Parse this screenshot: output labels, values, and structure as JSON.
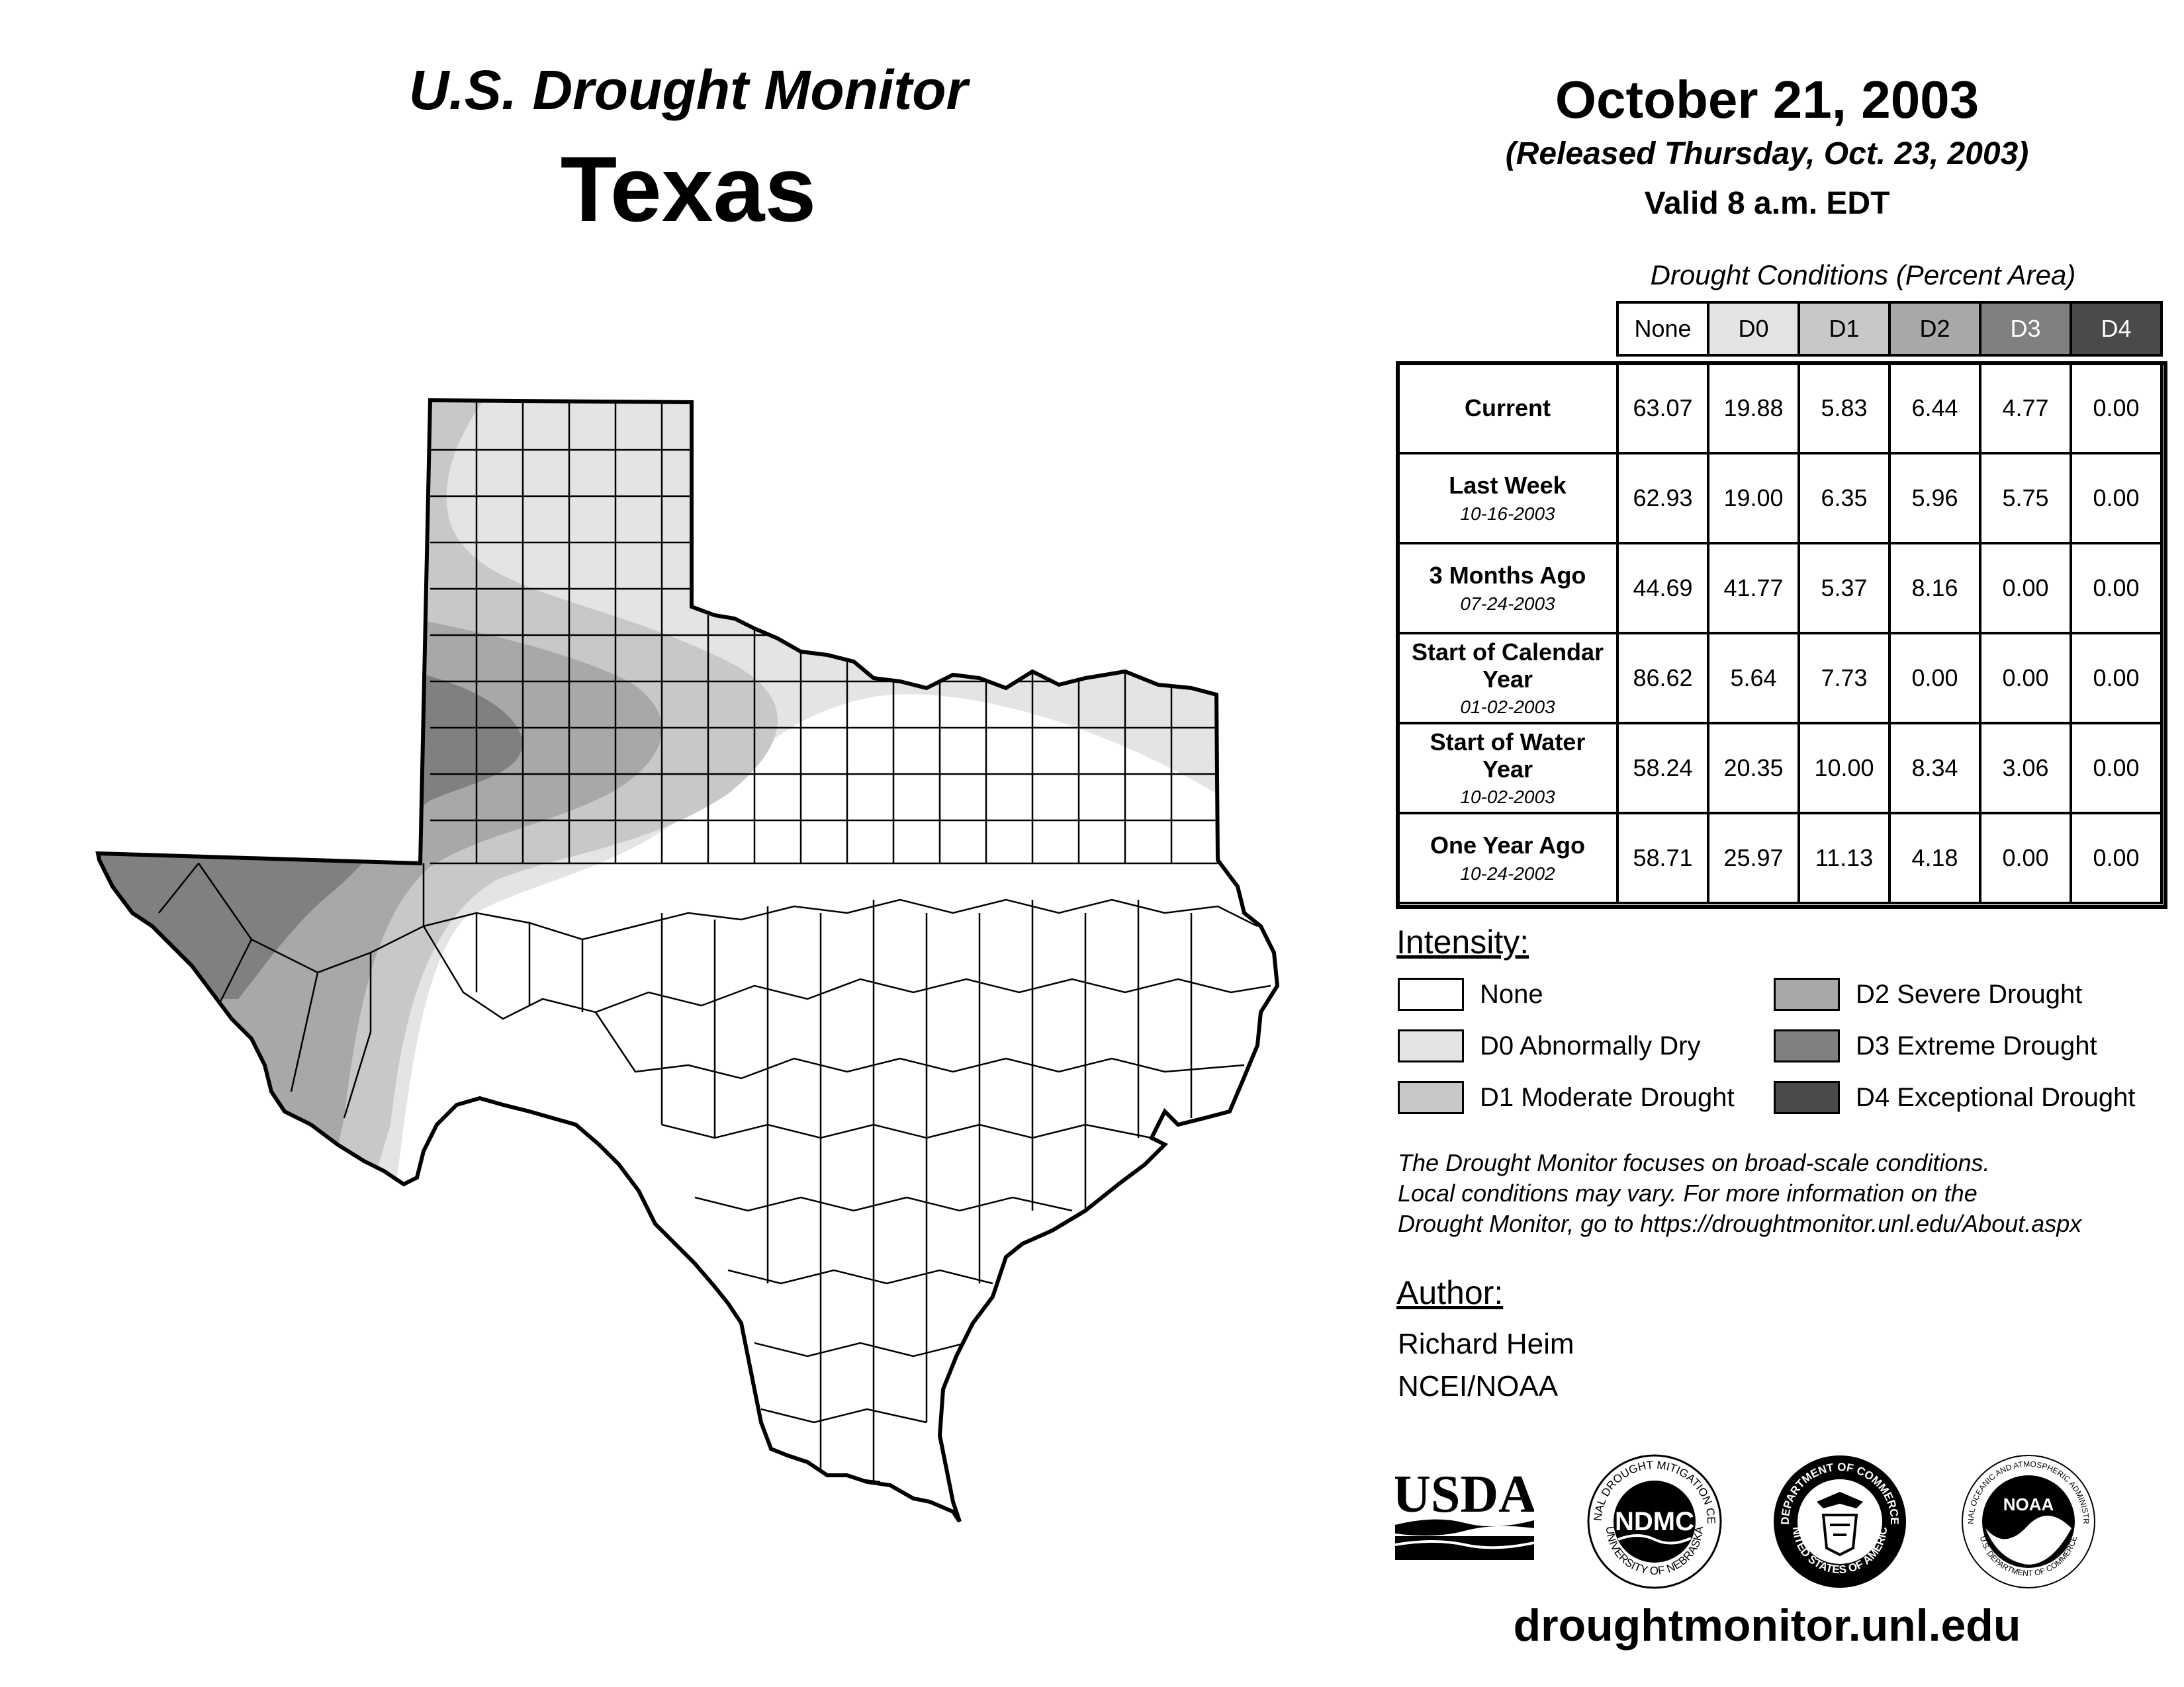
{
  "header": {
    "title": "U.S. Drought Monitor",
    "state": "Texas",
    "date": "October 21, 2003",
    "released": "(Released Thursday, Oct. 23, 2003)",
    "valid": "Valid 8 a.m. EDT"
  },
  "table": {
    "caption": "Drought Conditions (Percent Area)",
    "columns": [
      "None",
      "D0",
      "D1",
      "D2",
      "D3",
      "D4"
    ],
    "column_colors": [
      "#ffffff",
      "#e4e4e4",
      "#c8c8c8",
      "#a8a8a8",
      "#808080",
      "#4a4a4a"
    ],
    "rows": [
      {
        "label": "Current",
        "date": "",
        "values": [
          "63.07",
          "19.88",
          "5.83",
          "6.44",
          "4.77",
          "0.00"
        ]
      },
      {
        "label": "Last Week",
        "date": "10-16-2003",
        "values": [
          "62.93",
          "19.00",
          "6.35",
          "5.96",
          "5.75",
          "0.00"
        ]
      },
      {
        "label": "3 Months Ago",
        "date": "07-24-2003",
        "values": [
          "44.69",
          "41.77",
          "5.37",
          "8.16",
          "0.00",
          "0.00"
        ]
      },
      {
        "label": "Start of Calendar Year",
        "date": "01-02-2003",
        "values": [
          "86.62",
          "5.64",
          "7.73",
          "0.00",
          "0.00",
          "0.00"
        ]
      },
      {
        "label": "Start of Water Year",
        "date": "10-02-2003",
        "values": [
          "58.24",
          "20.35",
          "10.00",
          "8.34",
          "3.06",
          "0.00"
        ]
      },
      {
        "label": "One Year Ago",
        "date": "10-24-2002",
        "values": [
          "58.71",
          "25.97",
          "11.13",
          "4.18",
          "0.00",
          "0.00"
        ]
      }
    ]
  },
  "legend": {
    "title": "Intensity:",
    "items": [
      {
        "label": "None",
        "color": "#ffffff"
      },
      {
        "label": "D0 Abnormally Dry",
        "color": "#e4e4e4"
      },
      {
        "label": "D1 Moderate Drought",
        "color": "#c8c8c8"
      },
      {
        "label": "D2 Severe Drought",
        "color": "#a8a8a8"
      },
      {
        "label": "D3 Extreme Drought",
        "color": "#808080"
      },
      {
        "label": "D4 Exceptional Drought",
        "color": "#4a4a4a"
      }
    ]
  },
  "note": {
    "line1": "The Drought Monitor focuses on broad-scale conditions.",
    "line2": "Local conditions may vary. For more information on the",
    "line3": "Drought Monitor, go to https://droughtmonitor.unl.edu/About.aspx"
  },
  "author": {
    "heading": "Author:",
    "name": "Richard Heim",
    "org": "NCEI/NOAA"
  },
  "logos": {
    "usda": "USDA",
    "ndmc": "NDMC",
    "ndmc_ring_top": "NATIONAL DROUGHT MITIGATION CENTER",
    "ndmc_ring_bottom": "UNIVERSITY OF NEBRASKA",
    "doc_ring_top": "DEPARTMENT OF COMMERCE",
    "doc_ring_bottom": "UNITED STATES OF AMERICA",
    "noaa": "NOAA",
    "noaa_ring_top": "NATIONAL OCEANIC AND ATMOSPHERIC ADMINISTRATION",
    "noaa_ring_bottom": "U.S. DEPARTMENT OF COMMERCE"
  },
  "footer": {
    "url": "droughtmonitor.unl.edu"
  }
}
